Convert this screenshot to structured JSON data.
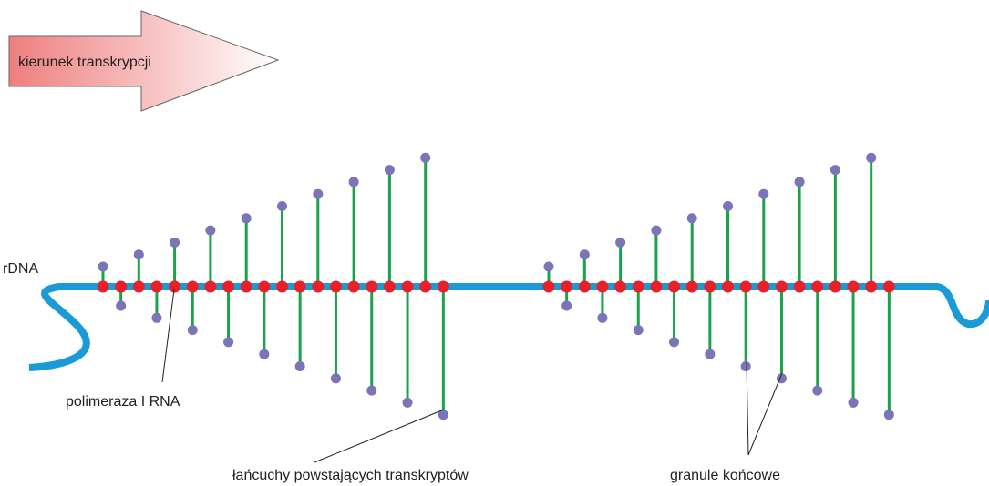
{
  "arrow": {
    "label": "kierunek transkrypcji"
  },
  "labels": {
    "dna": "rDNA",
    "polymerase": "polimeraza I RNA",
    "transcripts": "łańcuchy powstających transkryptów",
    "granules": "granule końcowe"
  }
}
